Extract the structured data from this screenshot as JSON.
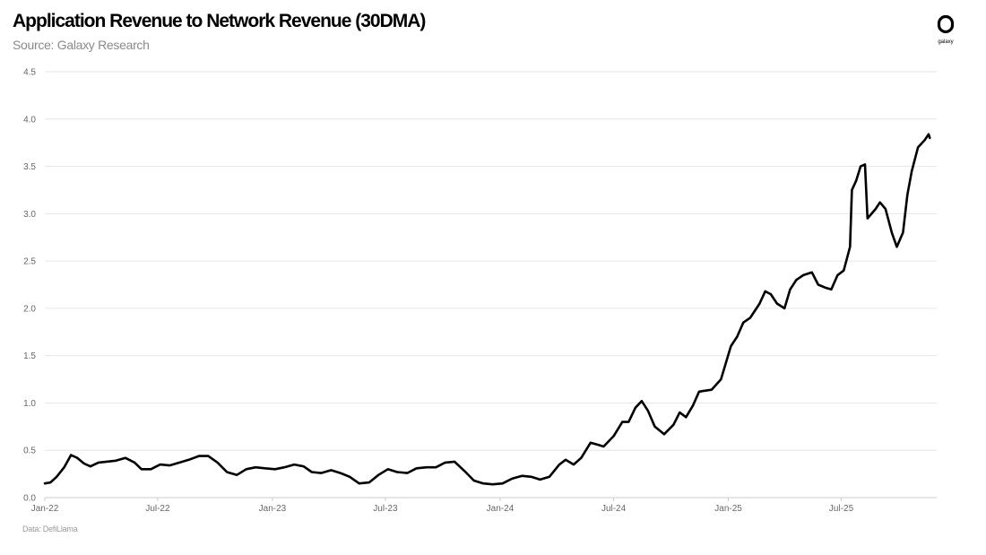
{
  "header": {
    "title": "Application Revenue to Network Revenue (30DMA)",
    "subtitle": "Source: Galaxy Research"
  },
  "logo": {
    "text": "galaxy",
    "icon": "galaxy-logo-icon"
  },
  "footer": {
    "text": "Data: DefiLlama"
  },
  "colors": {
    "line": "#000000",
    "grid": "#e6e6e6",
    "axis": "#cccccc",
    "tick": "#666666"
  },
  "chart_data": {
    "type": "line",
    "title": "Application Revenue to Network Revenue (30DMA)",
    "xlabel": "",
    "ylabel": "",
    "x_range": [
      "2022-01-01",
      "2025-12-01"
    ],
    "ylim": [
      0,
      4.5
    ],
    "yticks": [
      0.0,
      0.5,
      1.0,
      1.5,
      2.0,
      2.5,
      3.0,
      3.5,
      4.0,
      4.5
    ],
    "ytick_labels": [
      "0.0",
      "0.5",
      "1.0",
      "1.5",
      "2.0",
      "2.5",
      "3.0",
      "3.5",
      "4.0",
      "4.5"
    ],
    "xticks": [
      "2022-01-01",
      "2022-07-01",
      "2023-01-01",
      "2023-07-01",
      "2024-01-01",
      "2024-07-01",
      "2025-01-01",
      "2025-07-01"
    ],
    "xtick_labels": [
      "Jan-22",
      "Jul-22",
      "Jan-23",
      "Jul-23",
      "Jan-24",
      "Jul-24",
      "Jan-25",
      "Jul-25"
    ],
    "grid": true,
    "legend": "none",
    "series": [
      {
        "points": [
          [
            "2022-01-01",
            0.15
          ],
          [
            "2022-01-10",
            0.16
          ],
          [
            "2022-01-20",
            0.22
          ],
          [
            "2022-02-01",
            0.32
          ],
          [
            "2022-02-12",
            0.45
          ],
          [
            "2022-02-22",
            0.42
          ],
          [
            "2022-03-05",
            0.36
          ],
          [
            "2022-03-15",
            0.33
          ],
          [
            "2022-03-28",
            0.37
          ],
          [
            "2022-04-10",
            0.38
          ],
          [
            "2022-04-25",
            0.39
          ],
          [
            "2022-05-10",
            0.42
          ],
          [
            "2022-05-25",
            0.37
          ],
          [
            "2022-06-05",
            0.3
          ],
          [
            "2022-06-20",
            0.3
          ],
          [
            "2022-07-05",
            0.35
          ],
          [
            "2022-07-20",
            0.34
          ],
          [
            "2022-08-05",
            0.37
          ],
          [
            "2022-08-20",
            0.4
          ],
          [
            "2022-09-05",
            0.44
          ],
          [
            "2022-09-20",
            0.44
          ],
          [
            "2022-10-05",
            0.37
          ],
          [
            "2022-10-20",
            0.27
          ],
          [
            "2022-11-05",
            0.24
          ],
          [
            "2022-11-20",
            0.3
          ],
          [
            "2022-12-05",
            0.32
          ],
          [
            "2022-12-20",
            0.31
          ],
          [
            "2023-01-05",
            0.3
          ],
          [
            "2023-01-20",
            0.32
          ],
          [
            "2023-02-05",
            0.35
          ],
          [
            "2023-02-20",
            0.33
          ],
          [
            "2023-03-05",
            0.27
          ],
          [
            "2023-03-20",
            0.26
          ],
          [
            "2023-04-05",
            0.29
          ],
          [
            "2023-04-20",
            0.26
          ],
          [
            "2023-05-05",
            0.22
          ],
          [
            "2023-05-20",
            0.15
          ],
          [
            "2023-06-05",
            0.16
          ],
          [
            "2023-06-20",
            0.24
          ],
          [
            "2023-07-05",
            0.3
          ],
          [
            "2023-07-20",
            0.27
          ],
          [
            "2023-08-05",
            0.26
          ],
          [
            "2023-08-20",
            0.31
          ],
          [
            "2023-09-05",
            0.32
          ],
          [
            "2023-09-20",
            0.32
          ],
          [
            "2023-10-05",
            0.37
          ],
          [
            "2023-10-20",
            0.38
          ],
          [
            "2023-11-05",
            0.28
          ],
          [
            "2023-11-20",
            0.18
          ],
          [
            "2023-12-05",
            0.15
          ],
          [
            "2023-12-20",
            0.14
          ],
          [
            "2024-01-05",
            0.15
          ],
          [
            "2024-01-20",
            0.2
          ],
          [
            "2024-02-05",
            0.23
          ],
          [
            "2024-02-20",
            0.22
          ],
          [
            "2024-03-05",
            0.19
          ],
          [
            "2024-03-20",
            0.22
          ],
          [
            "2024-04-05",
            0.35
          ],
          [
            "2024-04-15",
            0.4
          ],
          [
            "2024-04-28",
            0.35
          ],
          [
            "2024-05-10",
            0.42
          ],
          [
            "2024-05-25",
            0.58
          ],
          [
            "2024-06-05",
            0.56
          ],
          [
            "2024-06-15",
            0.54
          ],
          [
            "2024-07-01",
            0.65
          ],
          [
            "2024-07-15",
            0.8
          ],
          [
            "2024-07-25",
            0.8
          ],
          [
            "2024-08-05",
            0.95
          ],
          [
            "2024-08-15",
            1.02
          ],
          [
            "2024-08-25",
            0.92
          ],
          [
            "2024-09-05",
            0.75
          ],
          [
            "2024-09-20",
            0.67
          ],
          [
            "2024-10-05",
            0.77
          ],
          [
            "2024-10-15",
            0.9
          ],
          [
            "2024-10-25",
            0.85
          ],
          [
            "2024-11-05",
            0.97
          ],
          [
            "2024-11-15",
            1.12
          ],
          [
            "2024-11-25",
            1.13
          ],
          [
            "2024-12-05",
            1.14
          ],
          [
            "2024-12-20",
            1.25
          ],
          [
            "2025-01-05",
            1.6
          ],
          [
            "2025-01-15",
            1.7
          ],
          [
            "2025-01-25",
            1.85
          ],
          [
            "2025-02-05",
            1.9
          ],
          [
            "2025-02-20",
            2.05
          ],
          [
            "2025-03-01",
            2.18
          ],
          [
            "2025-03-10",
            2.15
          ],
          [
            "2025-03-20",
            2.05
          ],
          [
            "2025-04-01",
            2.0
          ],
          [
            "2025-04-10",
            2.2
          ],
          [
            "2025-04-20",
            2.3
          ],
          [
            "2025-05-01",
            2.35
          ],
          [
            "2025-05-15",
            2.38
          ],
          [
            "2025-05-25",
            2.25
          ],
          [
            "2025-06-05",
            2.22
          ],
          [
            "2025-06-15",
            2.2
          ],
          [
            "2025-06-25",
            2.35
          ],
          [
            "2025-07-05",
            2.4
          ],
          [
            "2025-07-15",
            2.65
          ],
          [
            "2025-07-18",
            3.25
          ],
          [
            "2025-07-25",
            3.35
          ],
          [
            "2025-08-01",
            3.5
          ],
          [
            "2025-08-08",
            3.52
          ],
          [
            "2025-08-12",
            2.95
          ],
          [
            "2025-08-25",
            3.05
          ],
          [
            "2025-09-01",
            3.12
          ],
          [
            "2025-09-10",
            3.05
          ],
          [
            "2025-09-20",
            2.8
          ],
          [
            "2025-09-28",
            2.65
          ],
          [
            "2025-10-08",
            2.8
          ],
          [
            "2025-10-15",
            3.2
          ],
          [
            "2025-10-22",
            3.45
          ],
          [
            "2025-11-01",
            3.7
          ],
          [
            "2025-11-12",
            3.78
          ],
          [
            "2025-11-18",
            3.84
          ],
          [
            "2025-11-20",
            3.8
          ]
        ]
      }
    ]
  }
}
